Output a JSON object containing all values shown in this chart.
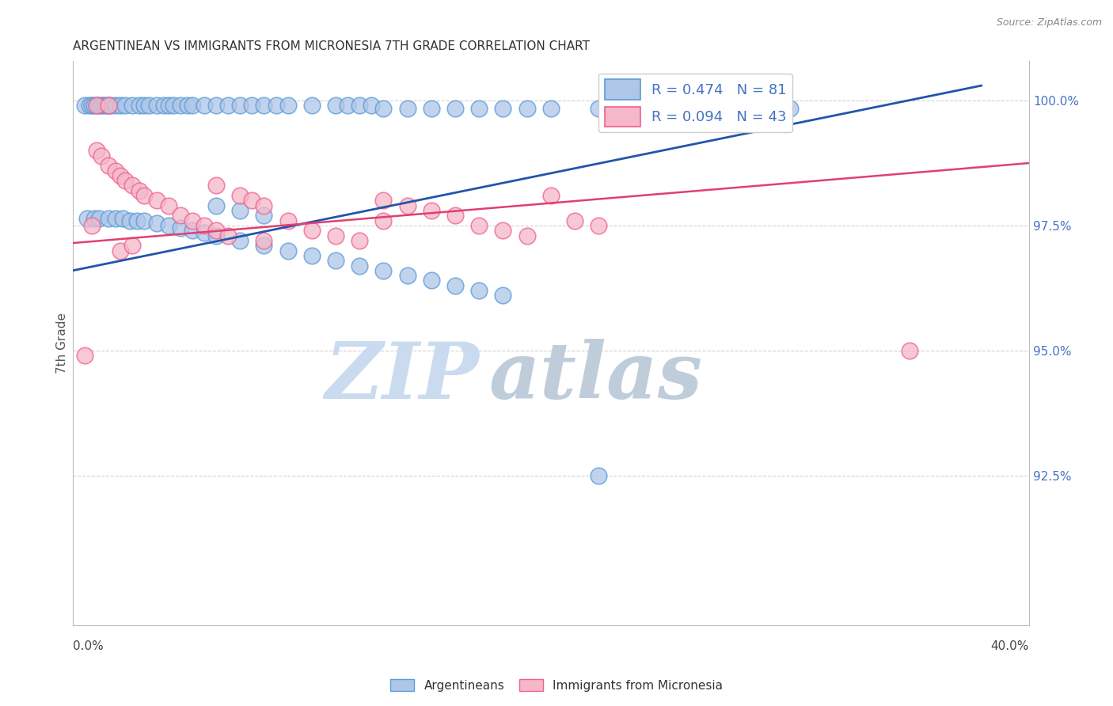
{
  "title": "ARGENTINEAN VS IMMIGRANTS FROM MICRONESIA 7TH GRADE CORRELATION CHART",
  "source": "Source: ZipAtlas.com",
  "ylabel": "7th Grade",
  "ylabel_right_labels": [
    "100.0%",
    "97.5%",
    "95.0%",
    "92.5%"
  ],
  "ylabel_right_values": [
    1.0,
    0.975,
    0.95,
    0.925
  ],
  "watermark_zip": "ZIP",
  "watermark_atlas": "atlas",
  "watermark_color_zip": "#c8d8ee",
  "watermark_color_atlas": "#c0c8d8",
  "blue_color": "#5b9bd5",
  "pink_color": "#f06090",
  "blue_fill": "#aec6e8",
  "pink_fill": "#f4b8c8",
  "blue_line_color": "#2255aa",
  "pink_line_color": "#e04070",
  "blue_R": 0.474,
  "blue_N": 81,
  "pink_R": 0.094,
  "pink_N": 43,
  "xlim": [
    0.0,
    0.4
  ],
  "ylim": [
    0.895,
    1.008
  ],
  "blue_line_x": [
    0.0,
    0.38
  ],
  "blue_line_y": [
    0.966,
    1.003
  ],
  "pink_line_x": [
    0.0,
    0.4
  ],
  "pink_line_y": [
    0.9715,
    0.9875
  ],
  "blue_scatter_x": [
    0.005,
    0.007,
    0.008,
    0.009,
    0.01,
    0.011,
    0.012,
    0.013,
    0.014,
    0.015,
    0.016,
    0.018,
    0.02,
    0.022,
    0.025,
    0.028,
    0.03,
    0.032,
    0.035,
    0.038,
    0.04,
    0.042,
    0.045,
    0.048,
    0.05,
    0.055,
    0.06,
    0.065,
    0.07,
    0.075,
    0.08,
    0.085,
    0.09,
    0.1,
    0.11,
    0.115,
    0.12,
    0.125,
    0.13,
    0.14,
    0.15,
    0.16,
    0.17,
    0.18,
    0.19,
    0.2,
    0.22,
    0.25,
    0.28,
    0.3,
    0.006,
    0.009,
    0.011,
    0.015,
    0.018,
    0.021,
    0.024,
    0.027,
    0.03,
    0.035,
    0.04,
    0.045,
    0.05,
    0.055,
    0.06,
    0.07,
    0.08,
    0.09,
    0.1,
    0.11,
    0.12,
    0.13,
    0.14,
    0.15,
    0.16,
    0.17,
    0.18,
    0.06,
    0.07,
    0.08,
    0.22
  ],
  "blue_scatter_y": [
    0.999,
    0.999,
    0.999,
    0.999,
    0.999,
    0.999,
    0.999,
    0.999,
    0.999,
    0.999,
    0.999,
    0.999,
    0.999,
    0.999,
    0.999,
    0.999,
    0.999,
    0.999,
    0.999,
    0.999,
    0.999,
    0.999,
    0.999,
    0.999,
    0.999,
    0.999,
    0.999,
    0.999,
    0.999,
    0.999,
    0.999,
    0.999,
    0.999,
    0.999,
    0.999,
    0.999,
    0.999,
    0.999,
    0.9985,
    0.9985,
    0.9985,
    0.9985,
    0.9985,
    0.9985,
    0.9985,
    0.9985,
    0.9985,
    0.9985,
    0.9985,
    0.9985,
    0.9765,
    0.9765,
    0.9765,
    0.9765,
    0.9765,
    0.9765,
    0.976,
    0.976,
    0.976,
    0.9755,
    0.975,
    0.9745,
    0.974,
    0.9735,
    0.973,
    0.972,
    0.971,
    0.97,
    0.969,
    0.968,
    0.967,
    0.966,
    0.965,
    0.964,
    0.963,
    0.962,
    0.961,
    0.979,
    0.978,
    0.977,
    0.925
  ],
  "pink_scatter_x": [
    0.005,
    0.008,
    0.01,
    0.012,
    0.015,
    0.018,
    0.02,
    0.022,
    0.025,
    0.028,
    0.03,
    0.035,
    0.04,
    0.045,
    0.05,
    0.055,
    0.06,
    0.065,
    0.07,
    0.075,
    0.08,
    0.09,
    0.1,
    0.11,
    0.12,
    0.13,
    0.14,
    0.15,
    0.16,
    0.17,
    0.18,
    0.19,
    0.2,
    0.21,
    0.22,
    0.35,
    0.01,
    0.015,
    0.02,
    0.025,
    0.06,
    0.08,
    0.13
  ],
  "pink_scatter_y": [
    0.949,
    0.975,
    0.99,
    0.989,
    0.987,
    0.986,
    0.985,
    0.984,
    0.983,
    0.982,
    0.981,
    0.98,
    0.979,
    0.977,
    0.976,
    0.975,
    0.974,
    0.973,
    0.981,
    0.98,
    0.979,
    0.976,
    0.974,
    0.973,
    0.972,
    0.98,
    0.979,
    0.978,
    0.977,
    0.975,
    0.974,
    0.973,
    0.981,
    0.976,
    0.975,
    0.95,
    0.999,
    0.999,
    0.97,
    0.971,
    0.983,
    0.972,
    0.976
  ]
}
